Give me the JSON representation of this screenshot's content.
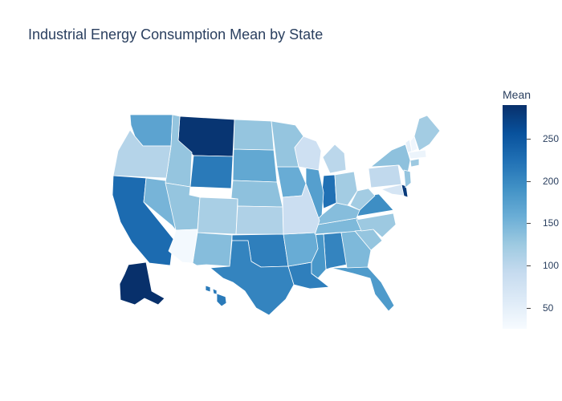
{
  "title": "Industrial Energy Consumption Mean by State",
  "colorbar": {
    "title": "Mean",
    "min": 25,
    "max": 290,
    "ticks": [
      {
        "label": "250",
        "value": 250
      },
      {
        "label": "200",
        "value": 200
      },
      {
        "label": "150",
        "value": 150
      },
      {
        "label": "100",
        "value": 100
      },
      {
        "label": "50",
        "value": 50
      }
    ],
    "colors": [
      "#f7fbff",
      "#deebf7",
      "#c6dbef",
      "#9ecae1",
      "#6baed6",
      "#4292c6",
      "#2171b5",
      "#08519c",
      "#08306b"
    ]
  },
  "chart_data": {
    "type": "choropleth",
    "title": "Industrial Energy Consumption Mean by State",
    "colorbar_title": "Mean",
    "range": [
      25,
      290
    ],
    "states": [
      {
        "id": "AK",
        "value": 290
      },
      {
        "id": "MT",
        "value": 285
      },
      {
        "id": "DE",
        "value": 280
      },
      {
        "id": "CA",
        "value": 230
      },
      {
        "id": "IN",
        "value": 225
      },
      {
        "id": "WY",
        "value": 215
      },
      {
        "id": "HI",
        "value": 215
      },
      {
        "id": "OK",
        "value": 210
      },
      {
        "id": "TX",
        "value": 205
      },
      {
        "id": "LA",
        "value": 210
      },
      {
        "id": "AL",
        "value": 205
      },
      {
        "id": "VA",
        "value": 195
      },
      {
        "id": "MS",
        "value": 185
      },
      {
        "id": "FL",
        "value": 180
      },
      {
        "id": "WA",
        "value": 170
      },
      {
        "id": "IL",
        "value": 175
      },
      {
        "id": "SD",
        "value": 165
      },
      {
        "id": "AR",
        "value": 160
      },
      {
        "id": "IA",
        "value": 160
      },
      {
        "id": "NV",
        "value": 150
      },
      {
        "id": "GA",
        "value": 145
      },
      {
        "id": "TN",
        "value": 145
      },
      {
        "id": "NM",
        "value": 140
      },
      {
        "id": "KY",
        "value": 140
      },
      {
        "id": "NE",
        "value": 135
      },
      {
        "id": "ID",
        "value": 130
      },
      {
        "id": "UT",
        "value": 130
      },
      {
        "id": "ND",
        "value": 130
      },
      {
        "id": "MN",
        "value": 130
      },
      {
        "id": "NY",
        "value": 135
      },
      {
        "id": "SC",
        "value": 130
      },
      {
        "id": "NC",
        "value": 125
      },
      {
        "id": "CT",
        "value": 125
      },
      {
        "id": "NJ",
        "value": 130
      },
      {
        "id": "ME",
        "value": 120
      },
      {
        "id": "WV",
        "value": 120
      },
      {
        "id": "OH",
        "value": 120
      },
      {
        "id": "CO",
        "value": 115
      },
      {
        "id": "KS",
        "value": 110
      },
      {
        "id": "OR",
        "value": 105
      },
      {
        "id": "MI",
        "value": 100
      },
      {
        "id": "PA",
        "value": 95
      },
      {
        "id": "MO",
        "value": 85
      },
      {
        "id": "WI",
        "value": 80
      },
      {
        "id": "MD",
        "value": 70
      },
      {
        "id": "VT",
        "value": 50
      },
      {
        "id": "MA",
        "value": 40
      },
      {
        "id": "NH",
        "value": 35
      },
      {
        "id": "AZ",
        "value": 30
      }
    ]
  }
}
